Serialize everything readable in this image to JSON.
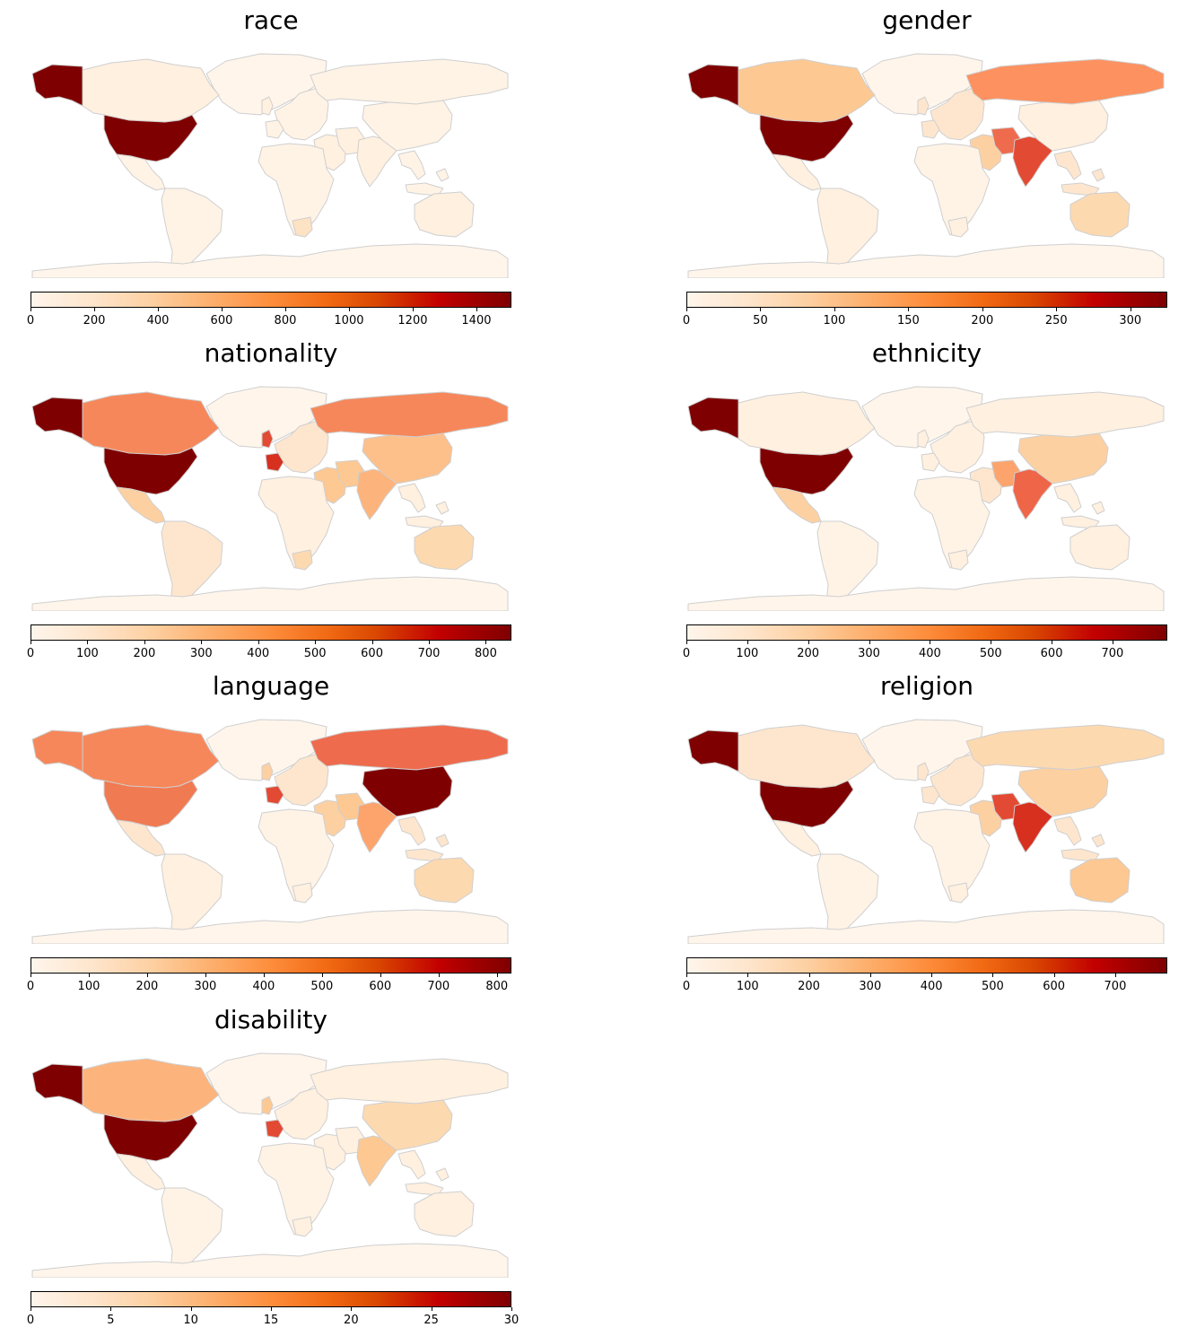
{
  "panels": [
    {
      "title": "race",
      "max": 1510,
      "ticks": [
        0,
        200,
        400,
        600,
        800,
        1000,
        1200,
        1400
      ],
      "fills": {
        "alaska": "#7f0000",
        "canada": "#fff0e0",
        "usa": "#7f0000",
        "mexico": "#fff3e6",
        "southamerica": "#fff3e6",
        "greenland": "#fff5eb",
        "europe": "#fff3e6",
        "uk": "#fff0e0",
        "france": "#fff3e6",
        "russia": "#fff3e6",
        "mideast": "#fff0e0",
        "iran": "#fff0e0",
        "india": "#fff0e0",
        "china": "#fff3e6",
        "africa": "#fff3e6",
        "southafrica": "#fde2c4",
        "seasia": "#fff3e6",
        "australia": "#fff0e0",
        "antarctica": "#fff5eb"
      }
    },
    {
      "title": "gender",
      "max": 325,
      "ticks": [
        0,
        50,
        100,
        150,
        200,
        250,
        300
      ],
      "fills": {
        "alaska": "#7f0000",
        "canada": "#fdc892",
        "usa": "#7f0000",
        "mexico": "#fff0e0",
        "southamerica": "#fff0e0",
        "greenland": "#fff5eb",
        "europe": "#fee6ce",
        "uk": "#fee6ce",
        "france": "#fee6ce",
        "russia": "#fd9160",
        "mideast": "#fdd0a2",
        "iran": "#ee6b4d",
        "india": "#e34a33",
        "china": "#fff0e0",
        "africa": "#fff3e6",
        "southafrica": "#fff0e0",
        "seasia": "#fee6ce",
        "australia": "#fdd9b0",
        "antarctica": "#fff5eb"
      }
    },
    {
      "title": "nationality",
      "max": 845,
      "ticks": [
        0,
        100,
        200,
        300,
        400,
        500,
        600,
        700,
        800
      ],
      "fills": {
        "alaska": "#7f0000",
        "canada": "#f6875a",
        "usa": "#7f0000",
        "mexico": "#fdd0a2",
        "southamerica": "#fee6ce",
        "greenland": "#fff5eb",
        "europe": "#fee6ce",
        "uk": "#e34a33",
        "france": "#d7301f",
        "russia": "#f6875a",
        "mideast": "#fdc892",
        "iran": "#fdc892",
        "india": "#fdb47c",
        "china": "#fdc08a",
        "africa": "#fff0e0",
        "southafrica": "#fdd9b0",
        "seasia": "#fff0e0",
        "australia": "#fdd9b0",
        "antarctica": "#fff5eb"
      }
    },
    {
      "title": "ethnicity",
      "max": 790,
      "ticks": [
        0,
        100,
        200,
        300,
        400,
        500,
        600,
        700
      ],
      "fills": {
        "alaska": "#7f0000",
        "canada": "#fff0e0",
        "usa": "#7f0000",
        "mexico": "#fdd0a2",
        "southamerica": "#fff3e6",
        "greenland": "#fff5eb",
        "europe": "#fff0e0",
        "uk": "#fff0e0",
        "france": "#fff0e0",
        "russia": "#fff0e0",
        "mideast": "#fee6ce",
        "iran": "#fda46c",
        "india": "#ef6548",
        "china": "#fdd0a2",
        "africa": "#fff3e6",
        "southafrica": "#fff0e0",
        "seasia": "#fff0e0",
        "australia": "#fff0e0",
        "antarctica": "#fff5eb"
      }
    },
    {
      "title": "language",
      "max": 825,
      "ticks": [
        0,
        100,
        200,
        300,
        400,
        500,
        600,
        700,
        800
      ],
      "fills": {
        "alaska": "#f6875a",
        "canada": "#f6875a",
        "usa": "#f07a52",
        "mexico": "#fee6ce",
        "southamerica": "#fff0e0",
        "greenland": "#fff5eb",
        "europe": "#fee6ce",
        "uk": "#fdd0a2",
        "france": "#e34a33",
        "russia": "#ee6b4d",
        "mideast": "#fdd0a2",
        "iran": "#fdc892",
        "india": "#fda46c",
        "china": "#7f0000",
        "africa": "#fff3e6",
        "southafrica": "#fff0e0",
        "seasia": "#fee6ce",
        "australia": "#fdd9b0",
        "antarctica": "#fff5eb"
      }
    },
    {
      "title": "religion",
      "max": 785,
      "ticks": [
        0,
        100,
        200,
        300,
        400,
        500,
        600,
        700
      ],
      "fills": {
        "alaska": "#7f0000",
        "canada": "#fee6ce",
        "usa": "#7f0000",
        "mexico": "#fff0e0",
        "southamerica": "#fff3e6",
        "greenland": "#fff5eb",
        "europe": "#fee6ce",
        "uk": "#fee6ce",
        "france": "#fee6ce",
        "russia": "#fdd9b0",
        "mideast": "#fdd0a2",
        "iran": "#e34a33",
        "india": "#d7301f",
        "china": "#fdd0a2",
        "africa": "#fff3e6",
        "southafrica": "#fff0e0",
        "seasia": "#fee6ce",
        "australia": "#fdc892",
        "antarctica": "#fff5eb"
      }
    },
    {
      "title": "disability",
      "max": 30,
      "ticks": [
        0,
        5,
        10,
        15,
        20,
        25,
        30
      ],
      "fills": {
        "alaska": "#7f0000",
        "canada": "#fdb47c",
        "usa": "#7f0000",
        "mexico": "#fff0e0",
        "southamerica": "#fff3e6",
        "greenland": "#fff5eb",
        "europe": "#fff0e0",
        "uk": "#fdc892",
        "france": "#e34a33",
        "russia": "#fff0e0",
        "mideast": "#fff0e0",
        "iran": "#fff0e0",
        "india": "#fdc892",
        "china": "#fdd9b0",
        "africa": "#fff3e6",
        "southafrica": "#fff0e0",
        "seasia": "#fff0e0",
        "australia": "#fff0e0",
        "antarctica": "#fff5eb"
      }
    }
  ]
}
